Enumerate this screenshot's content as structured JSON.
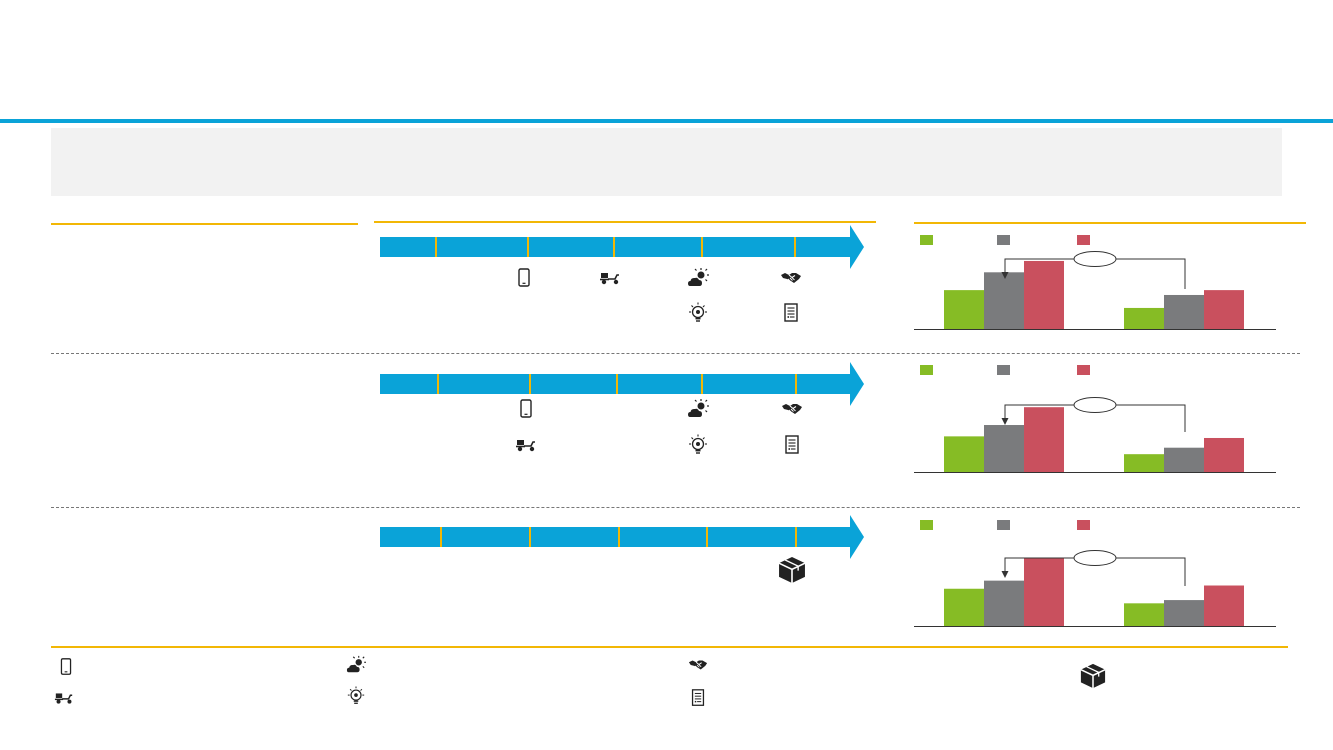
{
  "colors": {
    "accent_blue": "#0aa3d8",
    "gold": "#f2b705",
    "series_green": "#86bc25",
    "series_gray": "#7a7b7d",
    "series_red": "#c9505e",
    "panel_gray": "#f2f2f2"
  },
  "icons": {
    "phone": "mobile-phone-icon",
    "scooter": "delivery-scooter-icon",
    "weather": "sun-cloud-icon",
    "idea": "lightbulb-gear-icon",
    "handshake": "handshake-icon",
    "document": "document-list-icon",
    "box": "package-box-icon"
  },
  "rows": [
    {
      "timeline_icons": [
        {
          "icon": "phone",
          "line": 1,
          "tick": 2
        },
        {
          "icon": "scooter",
          "line": 1,
          "tick": 3
        },
        {
          "icon": "weather",
          "line": 1,
          "tick": 4
        },
        {
          "icon": "handshake",
          "line": 1,
          "tick": 5
        },
        {
          "icon": "idea",
          "line": 2,
          "tick": 4
        },
        {
          "icon": "document",
          "line": 2,
          "tick": 5
        }
      ]
    },
    {
      "timeline_icons": [
        {
          "icon": "phone",
          "line": 1,
          "tick": 2
        },
        {
          "icon": "weather",
          "line": 1,
          "tick": 4
        },
        {
          "icon": "handshake",
          "line": 1,
          "tick": 5
        },
        {
          "icon": "scooter",
          "line": 2,
          "tick": 2
        },
        {
          "icon": "idea",
          "line": 2,
          "tick": 4
        },
        {
          "icon": "document",
          "line": 2,
          "tick": 5
        }
      ]
    },
    {
      "timeline_icons": [
        {
          "icon": "box",
          "line": 1,
          "tick": 5
        }
      ]
    }
  ],
  "footer_icons": [
    "phone",
    "scooter",
    "weather",
    "idea",
    "handshake",
    "document",
    "box"
  ],
  "chart_data": [
    {
      "type": "bar",
      "categories": [
        "",
        ""
      ],
      "series": [
        {
          "color": "#86bc25",
          "values": [
            24,
            13
          ]
        },
        {
          "color": "#7a7b7d",
          "values": [
            35,
            21
          ]
        },
        {
          "color": "#c9505e",
          "values": [
            42,
            24
          ]
        }
      ],
      "ylim": [
        0,
        60
      ],
      "grid": false,
      "legend": "top-left"
    },
    {
      "type": "bar",
      "categories": [
        "",
        ""
      ],
      "series": [
        {
          "color": "#86bc25",
          "values": [
            22,
            11
          ]
        },
        {
          "color": "#7a7b7d",
          "values": [
            29,
            15
          ]
        },
        {
          "color": "#c9505e",
          "values": [
            40,
            21
          ]
        }
      ],
      "ylim": [
        0,
        60
      ],
      "grid": false,
      "legend": "top-left"
    },
    {
      "type": "bar",
      "categories": [
        "",
        ""
      ],
      "series": [
        {
          "color": "#86bc25",
          "values": [
            23,
            14
          ]
        },
        {
          "color": "#7a7b7d",
          "values": [
            28,
            16
          ]
        },
        {
          "color": "#c9505e",
          "values": [
            42,
            25
          ]
        }
      ],
      "ylim": [
        0,
        60
      ],
      "grid": false,
      "legend": "top-left"
    }
  ]
}
